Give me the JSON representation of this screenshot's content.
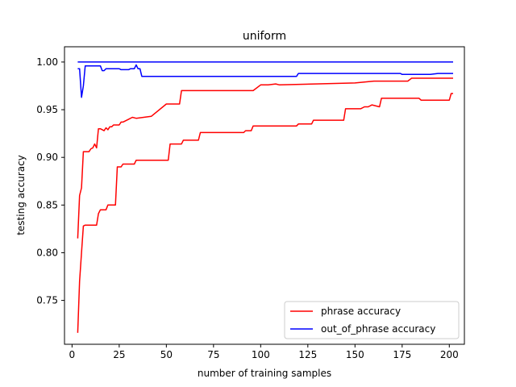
{
  "chart_data": {
    "type": "line",
    "title": "uniform",
    "xlabel": "number of training samples",
    "ylabel": "testing accuracy",
    "xlim": [
      -4,
      208
    ],
    "ylim": [
      0.704,
      1.016
    ],
    "xticks": [
      0,
      25,
      50,
      75,
      100,
      125,
      150,
      175,
      200
    ],
    "yticks": [
      0.75,
      0.8,
      0.85,
      0.9,
      0.95,
      1.0
    ],
    "xtick_labels": [
      "0",
      "25",
      "50",
      "75",
      "100",
      "125",
      "150",
      "175",
      "200"
    ],
    "ytick_labels": [
      "0.75",
      "0.80",
      "0.85",
      "0.90",
      "0.95",
      "1.00"
    ],
    "legend_position": "lower-right",
    "series": [
      {
        "name": "phrase accuracy",
        "color": "#ff0000",
        "x": [
          3,
          4,
          5,
          6,
          8,
          9,
          10,
          11,
          12,
          13,
          14,
          15,
          17,
          18,
          19,
          20,
          21,
          22,
          25,
          26,
          27,
          30,
          32,
          34,
          38,
          42,
          50,
          51,
          57,
          58,
          96,
          100,
          104,
          108,
          110,
          150,
          160,
          170,
          175,
          178,
          180,
          202
        ],
        "y": [
          0.815,
          0.86,
          0.868,
          0.906,
          0.906,
          0.906,
          0.909,
          0.91,
          0.914,
          0.91,
          0.93,
          0.93,
          0.928,
          0.931,
          0.929,
          0.932,
          0.932,
          0.934,
          0.934,
          0.937,
          0.937,
          0.94,
          0.942,
          0.941,
          0.942,
          0.943,
          0.956,
          0.956,
          0.956,
          0.97,
          0.97,
          0.976,
          0.976,
          0.977,
          0.976,
          0.978,
          0.98,
          0.98,
          0.98,
          0.98,
          0.983,
          0.983
        ]
      },
      {
        "name": "",
        "color": "#ff0000",
        "x": [
          3,
          4,
          5,
          6,
          7,
          13,
          14,
          15,
          18,
          19,
          23,
          24,
          26,
          27,
          33,
          34,
          51,
          52,
          58,
          59,
          67,
          68,
          91,
          92,
          95,
          96,
          119,
          120,
          127,
          128,
          144,
          145,
          153,
          155,
          157,
          159,
          163,
          164,
          184,
          185,
          200,
          201,
          202
        ],
        "y": [
          0.716,
          0.77,
          0.8,
          0.828,
          0.829,
          0.829,
          0.841,
          0.845,
          0.845,
          0.85,
          0.85,
          0.89,
          0.89,
          0.893,
          0.893,
          0.897,
          0.897,
          0.914,
          0.914,
          0.918,
          0.918,
          0.926,
          0.926,
          0.928,
          0.928,
          0.933,
          0.933,
          0.935,
          0.935,
          0.939,
          0.939,
          0.951,
          0.951,
          0.953,
          0.953,
          0.955,
          0.953,
          0.962,
          0.962,
          0.96,
          0.96,
          0.967,
          0.967
        ]
      },
      {
        "name": "out_of_phrase accuracy",
        "color": "#0000ff",
        "x": [
          3,
          202
        ],
        "y": [
          1.0,
          1.0
        ]
      },
      {
        "name": "",
        "color": "#0000ff",
        "x": [
          3,
          4,
          5,
          6,
          7,
          8,
          10,
          12,
          15,
          16,
          17,
          18,
          19,
          20,
          25,
          26,
          30,
          31,
          32,
          33,
          34,
          35,
          36,
          37,
          38,
          119,
          120,
          174,
          175,
          190,
          194,
          196,
          202
        ],
        "y": [
          0.993,
          0.993,
          0.963,
          0.975,
          0.996,
          0.996,
          0.996,
          0.996,
          0.996,
          0.991,
          0.991,
          0.993,
          0.993,
          0.993,
          0.993,
          0.992,
          0.992,
          0.993,
          0.993,
          0.993,
          0.997,
          0.993,
          0.993,
          0.985,
          0.985,
          0.985,
          0.988,
          0.988,
          0.987,
          0.987,
          0.988,
          0.988,
          0.988
        ]
      }
    ]
  }
}
